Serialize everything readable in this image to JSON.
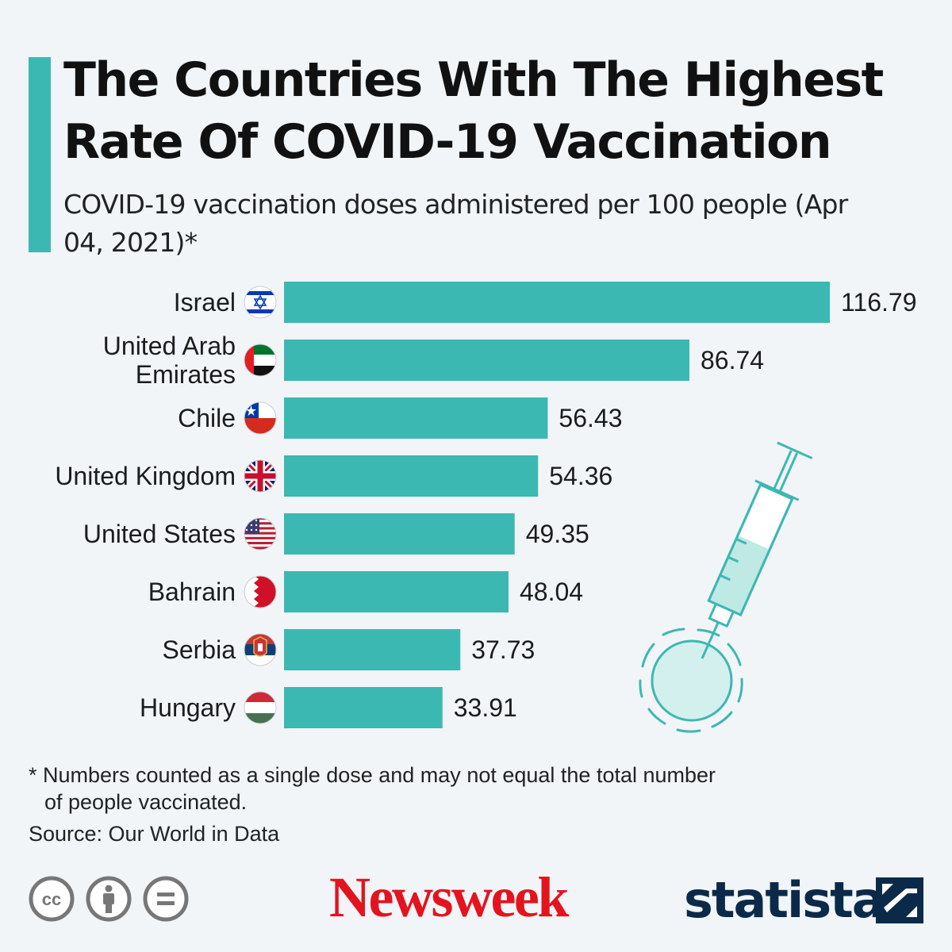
{
  "header": {
    "title": "The Countries With The Highest Rate Of COVID-19 Vaccination",
    "subtitle": "COVID-19 vaccination doses administered per 100 people (Apr 04, 2021)*"
  },
  "colors": {
    "accent": "#3cb8b2",
    "bar": "#3cb8b2",
    "newsweek": "#e3141e",
    "statista": "#0b2a4a"
  },
  "chart_data": {
    "type": "bar",
    "orientation": "horizontal",
    "title": "The Countries With The Highest Rate Of COVID-19 Vaccination",
    "subtitle": "COVID-19 vaccination doses administered per 100 people (Apr 04, 2021)*",
    "xlabel": "",
    "ylabel": "",
    "xlim": [
      0,
      116.79
    ],
    "grid": false,
    "categories": [
      "Israel",
      "United Arab Emirates",
      "Chile",
      "United Kingdom",
      "United States",
      "Bahrain",
      "Serbia",
      "Hungary"
    ],
    "category_lines": [
      [
        "Israel"
      ],
      [
        "United Arab",
        "Emirates"
      ],
      [
        "Chile"
      ],
      [
        "United Kingdom"
      ],
      [
        "United States"
      ],
      [
        "Bahrain"
      ],
      [
        "Serbia"
      ],
      [
        "Hungary"
      ]
    ],
    "flags": [
      "israel-flag-icon",
      "uae-flag-icon",
      "chile-flag-icon",
      "uk-flag-icon",
      "usa-flag-icon",
      "bahrain-flag-icon",
      "serbia-flag-icon",
      "hungary-flag-icon"
    ],
    "values": [
      116.79,
      86.74,
      56.43,
      54.36,
      49.35,
      48.04,
      37.73,
      33.91
    ],
    "value_labels": [
      "116.79",
      "86.74",
      "56.43",
      "54.36",
      "49.35",
      "48.04",
      "37.73",
      "33.91"
    ]
  },
  "illustration": {
    "icon": "syringe-virus-icon"
  },
  "footer": {
    "footnote_line1": "* Numbers counted as a single dose and may not equal the total number",
    "footnote_line2": "of people vaccinated.",
    "source": "Source: Our World in Data",
    "license_icons": [
      "cc-icon",
      "attribution-icon",
      "no-derivatives-icon"
    ],
    "cc_text": "cc",
    "logos": {
      "newsweek": "Newsweek",
      "statista": "statista"
    }
  }
}
